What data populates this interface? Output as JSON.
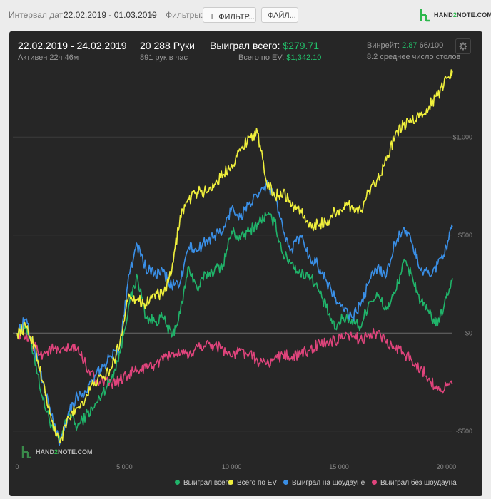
{
  "toolbar": {
    "interval_label": "Интервал дат:",
    "interval_value": "22.02.2019 - 01.03.2019",
    "filters_label": "Фильтры:",
    "filters_button": "ФИЛЬТР...",
    "files_button": "ФАЙЛ...",
    "logo_text_pre": "HAND",
    "logo_text_two": "2",
    "logo_text_post": "NOTE.COM"
  },
  "summary": {
    "date_range": "22.02.2019 - 24.02.2019",
    "active": "Активен 22ч 46м",
    "hands": "20 288 Руки",
    "hands_per_hour": "891 рук в час",
    "won_total_label": "Выиграл всего:",
    "won_total_value": "$279.71",
    "ev_total_label": "Всего по EV:",
    "ev_total_value": "$1,342.10",
    "winrate_label": "Винрейт:",
    "winrate_value": "2.87",
    "winrate_hands": "66/100",
    "avg_tables": "8.2 среднее число столов"
  },
  "watermark": {
    "pre": "HAND",
    "two": "2",
    "post": "NOTE.COM"
  },
  "colors": {
    "won_total": "#20b46a",
    "ev_total": "#f0f03c",
    "won_showdown": "#3a8fe6",
    "won_no_showdown": "#e0447c",
    "grid": "#3b3b3b",
    "zero": "#6a6a6a"
  },
  "chart_data": {
    "type": "line",
    "title": "",
    "xlabel": "",
    "ylabel": "",
    "xlim": [
      0,
      20288
    ],
    "ylim": [
      -650,
      1350
    ],
    "x_ticks": [
      0,
      5000,
      10000,
      15000,
      20000
    ],
    "x_tick_labels": [
      "0",
      "5 000",
      "10 000",
      "15 000",
      "20 000"
    ],
    "y_ticks": [
      1000,
      500,
      0,
      -500
    ],
    "y_tick_labels": [
      "$1,000",
      "$500",
      "$0",
      "-$500"
    ],
    "grid": true,
    "legend_position": "bottom",
    "series": [
      {
        "name": "Выиграл всего",
        "color_key": "won_total",
        "x": [
          0,
          400,
          800,
          1200,
          1600,
          2000,
          2400,
          2800,
          3200,
          3600,
          4000,
          4400,
          4800,
          5200,
          5600,
          6000,
          6400,
          6800,
          7200,
          7600,
          8000,
          8400,
          8800,
          9200,
          9600,
          10000,
          10400,
          10800,
          11200,
          11600,
          12000,
          12400,
          12800,
          13200,
          13600,
          14000,
          14400,
          14800,
          15200,
          15600,
          16000,
          16400,
          16800,
          17200,
          17600,
          18000,
          18400,
          18800,
          19200,
          19600,
          20000,
          20288
        ],
        "y": [
          0,
          40,
          -120,
          -340,
          -470,
          -560,
          -400,
          -480,
          -420,
          -380,
          -300,
          -230,
          -100,
          140,
          290,
          80,
          60,
          80,
          -20,
          100,
          340,
          220,
          300,
          320,
          350,
          520,
          480,
          520,
          560,
          600,
          570,
          400,
          360,
          300,
          300,
          230,
          130,
          20,
          80,
          70,
          30,
          160,
          190,
          120,
          200,
          360,
          300,
          160,
          100,
          40,
          180,
          280
        ]
      },
      {
        "name": "Всего по EV",
        "color_key": "ev_total",
        "x": [
          0,
          400,
          800,
          1200,
          1600,
          2000,
          2400,
          2800,
          3200,
          3600,
          4000,
          4400,
          4800,
          5200,
          5600,
          6000,
          6400,
          6800,
          7200,
          7600,
          8000,
          8400,
          8800,
          9200,
          9600,
          10000,
          10400,
          10800,
          11200,
          11600,
          12000,
          12400,
          12800,
          13200,
          13600,
          14000,
          14400,
          14800,
          15200,
          15600,
          16000,
          16400,
          16800,
          17200,
          17600,
          18000,
          18400,
          18800,
          19200,
          19600,
          20000,
          20288
        ],
        "y": [
          0,
          30,
          -60,
          -250,
          -450,
          -560,
          -430,
          -380,
          -330,
          -250,
          -230,
          -180,
          -40,
          200,
          170,
          150,
          200,
          190,
          310,
          600,
          680,
          720,
          720,
          760,
          810,
          860,
          930,
          1000,
          1020,
          780,
          700,
          720,
          650,
          630,
          540,
          560,
          560,
          620,
          640,
          650,
          620,
          730,
          790,
          880,
          1000,
          1060,
          1080,
          1110,
          1160,
          1210,
          1300,
          1340
        ]
      },
      {
        "name": "Выиграл на шоудауне",
        "color_key": "won_showdown",
        "x": [
          0,
          400,
          800,
          1200,
          1600,
          2000,
          2400,
          2800,
          3200,
          3600,
          4000,
          4400,
          4800,
          5200,
          5600,
          6000,
          6400,
          6800,
          7200,
          7600,
          8000,
          8400,
          8800,
          9200,
          9600,
          10000,
          10400,
          10800,
          11200,
          11600,
          12000,
          12400,
          12800,
          13200,
          13600,
          14000,
          14400,
          14800,
          15200,
          15600,
          16000,
          16400,
          16800,
          17200,
          17600,
          18000,
          18400,
          18800,
          19200,
          19600,
          20000,
          20288
        ],
        "y": [
          0,
          70,
          -80,
          -250,
          -420,
          -560,
          -400,
          -320,
          -300,
          -230,
          -170,
          -120,
          -60,
          300,
          450,
          330,
          300,
          310,
          240,
          260,
          440,
          420,
          470,
          500,
          520,
          640,
          590,
          660,
          690,
          760,
          700,
          520,
          430,
          500,
          390,
          350,
          270,
          180,
          120,
          80,
          140,
          260,
          340,
          290,
          460,
          540,
          460,
          320,
          300,
          350,
          440,
          540
        ]
      },
      {
        "name": "Выиграл без шоудауна",
        "color_key": "won_no_showdown",
        "x": [
          0,
          400,
          800,
          1200,
          1600,
          2000,
          2400,
          2800,
          3200,
          3600,
          4000,
          4400,
          4800,
          5200,
          5600,
          6000,
          6400,
          6800,
          7200,
          7600,
          8000,
          8400,
          8800,
          9200,
          9600,
          10000,
          10400,
          10800,
          11200,
          11600,
          12000,
          12400,
          12800,
          13200,
          13600,
          14000,
          14400,
          14800,
          15200,
          15600,
          16000,
          16400,
          16800,
          17200,
          17600,
          18000,
          18400,
          18800,
          19200,
          19600,
          20000,
          20288
        ],
        "y": [
          0,
          -20,
          -70,
          -110,
          -80,
          -100,
          -80,
          -80,
          -160,
          -230,
          -250,
          -260,
          -240,
          -210,
          -190,
          -180,
          -160,
          -140,
          -100,
          -110,
          -120,
          -70,
          -60,
          -60,
          -80,
          -120,
          -90,
          -110,
          -140,
          -160,
          -130,
          -110,
          -120,
          -110,
          -90,
          -60,
          -50,
          -40,
          -30,
          -20,
          -30,
          -10,
          0,
          -50,
          -80,
          -100,
          -140,
          -180,
          -230,
          -290,
          -270,
          -260
        ]
      }
    ]
  },
  "legend": [
    {
      "label": "Выиграл всего",
      "color_key": "won_total"
    },
    {
      "label": "Всего по EV",
      "color_key": "ev_total"
    },
    {
      "label": "Выиграл на шоудауне",
      "color_key": "won_showdown"
    },
    {
      "label": "Выиграл без шоудауна",
      "color_key": "won_no_showdown"
    }
  ]
}
